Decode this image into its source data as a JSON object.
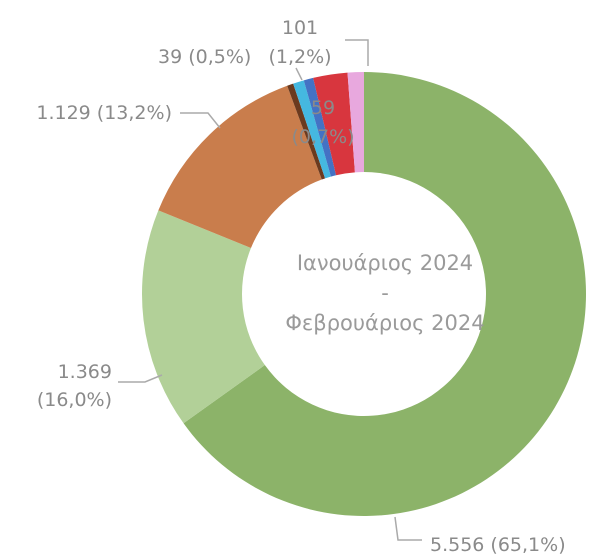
{
  "chart_data": {
    "type": "donut",
    "center_text": [
      "Ιανουάριος 2024",
      "-",
      "Φεβρουάριος 2024"
    ],
    "values": [
      5556,
      1369,
      1129,
      39,
      68,
      59,
      213,
      101
    ],
    "value_labels": [
      "5.556 (65,1%)",
      "1.369 (16,0%)",
      "1.129 (13,2%)",
      "39 (0,5%)",
      null,
      "59 (0,7%)",
      null,
      "101 (1,2%)"
    ],
    "colors": [
      "#8cb369",
      "#b2d098",
      "#c97d4c",
      "#6b3a1e",
      "#45b8e0",
      "#4472c4",
      "#d8363e",
      "#e8a8de"
    ]
  }
}
